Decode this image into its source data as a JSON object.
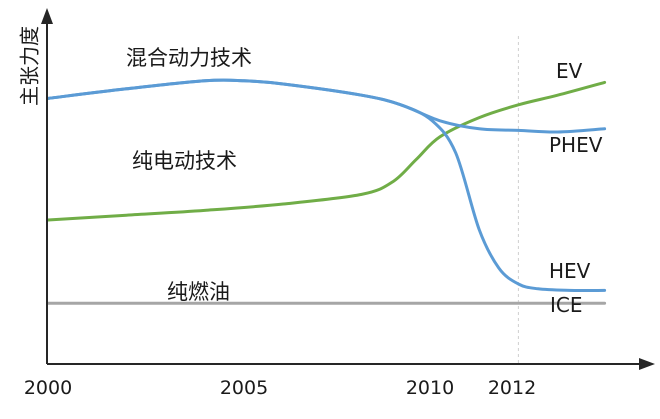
{
  "chart_data": {
    "type": "line",
    "title": "",
    "ylabel": "主张力度",
    "xlabel": "",
    "xlim": [
      2000,
      2014.8
    ],
    "ylim": [
      0,
      100
    ],
    "x_ticks": [
      "2000",
      "2005",
      "2010",
      "2012"
    ],
    "reference_line_x": 2012,
    "grid": false,
    "colors": {
      "blue": "#5b9bd5",
      "green": "#70ad47",
      "gray": "#a6a6a6",
      "axis": "#262626"
    },
    "series": [
      {
        "name": "PHEV",
        "color": "#5b9bd5",
        "x": [
          2000,
          2002,
          2004,
          2005,
          2006,
          2008,
          2009,
          2010,
          2011,
          2012,
          2013,
          2014.2
        ],
        "y": [
          83,
          86,
          88.5,
          88.5,
          87.5,
          84,
          81,
          76,
          73.5,
          73,
          72.5,
          73.5
        ]
      },
      {
        "name": "HEV",
        "color": "#5b9bd5",
        "x": [
          2000,
          2002,
          2004,
          2005,
          2006,
          2008,
          2009,
          2009.8,
          2010.4,
          2011,
          2011.5,
          2012,
          2012.5,
          2013.3,
          2014.2
        ],
        "y": [
          83,
          86,
          88.5,
          88.5,
          87.5,
          84,
          81,
          76,
          66,
          42,
          30,
          25,
          23.5,
          23,
          23
        ]
      },
      {
        "name": "EV",
        "color": "#70ad47",
        "x": [
          2000,
          2002,
          2004,
          2006,
          2008,
          2008.8,
          2009.4,
          2010,
          2011,
          2012,
          2013,
          2014.2
        ],
        "y": [
          45,
          46.5,
          48,
          50,
          53,
          57,
          64,
          71,
          77,
          81,
          84,
          88
        ]
      },
      {
        "name": "ICE",
        "color": "#a6a6a6",
        "x": [
          2000,
          2014.2
        ],
        "y": [
          19,
          19
        ]
      }
    ],
    "annotations": [
      {
        "text": "混合动力技术"
      },
      {
        "text": "纯电动技术"
      },
      {
        "text": "纯燃油"
      }
    ]
  }
}
